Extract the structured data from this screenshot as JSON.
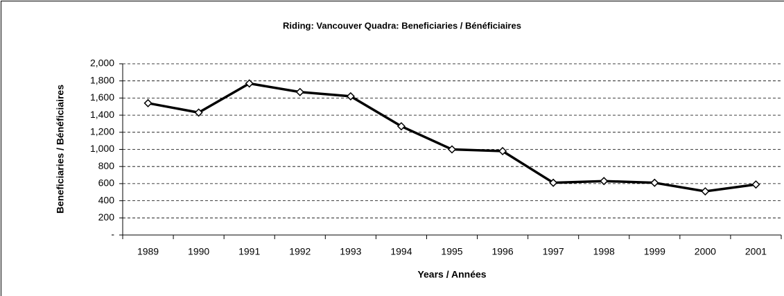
{
  "chart_data": {
    "type": "line",
    "title": "Riding:  Vancouver Quadra:  Beneficiaries / Bénéficiaires",
    "x_label": "Years / Années",
    "y_label": "Beneficiaries / Bénéficiaires",
    "categories": [
      "1989",
      "1990",
      "1991",
      "1992",
      "1993",
      "1994",
      "1995",
      "1996",
      "1997",
      "1998",
      "1999",
      "2000",
      "2001"
    ],
    "values": [
      1540,
      1430,
      1770,
      1670,
      1620,
      1270,
      1000,
      980,
      610,
      630,
      610,
      510,
      590
    ],
    "color": "#000000",
    "ylim": [
      0,
      2000
    ],
    "yticks": [
      {
        "value": 0,
        "label": "-"
      },
      200,
      400,
      600,
      800,
      {
        "value": 1000,
        "label": "1,000"
      },
      {
        "value": 1200,
        "label": "1,200"
      },
      {
        "value": 1400,
        "label": "1,400"
      },
      {
        "value": 1600,
        "label": "1,600"
      },
      {
        "value": 1800,
        "label": "1,800"
      },
      {
        "value": 2000,
        "label": "2,000"
      }
    ],
    "grid": true
  }
}
